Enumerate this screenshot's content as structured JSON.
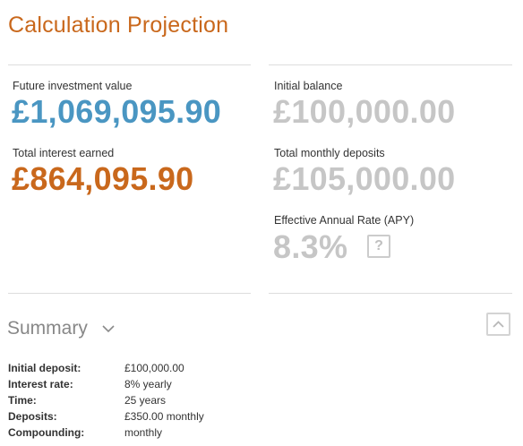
{
  "header": {
    "title": "Calculation Projection"
  },
  "left": {
    "future_label": "Future investment value",
    "future_value": "£1,069,095.90",
    "interest_label": "Total interest earned",
    "interest_value": "£864,095.90"
  },
  "right": {
    "initial_label": "Initial balance",
    "initial_value": "£100,000.00",
    "deposits_label": "Total monthly deposits",
    "deposits_value": "£105,000.00",
    "apy_label": "Effective Annual Rate (APY)",
    "apy_value": "8.3%",
    "help_glyph": "?"
  },
  "summary": {
    "title": "Summary",
    "rows": [
      {
        "key": "Initial deposit:",
        "value": "£100,000.00"
      },
      {
        "key": "Interest rate:",
        "value": "8% yearly"
      },
      {
        "key": "Time:",
        "value": "25 years"
      },
      {
        "key": "Deposits:",
        "value": "£350.00 monthly"
      },
      {
        "key": "Compounding:",
        "value": "monthly"
      }
    ]
  },
  "colors": {
    "accent_orange": "#c9681c",
    "accent_blue": "#4a96c2",
    "muted_gray": "#c6c6c6"
  },
  "icons": {
    "summary_toggle": "chevron-down-icon",
    "collapse": "chevron-up-icon",
    "help": "question-icon"
  }
}
